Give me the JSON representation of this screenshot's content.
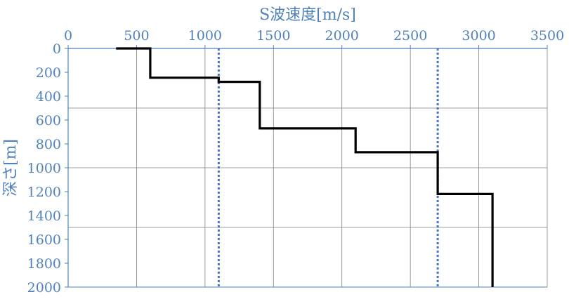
{
  "chart_data": {
    "type": "line",
    "title": "",
    "xlabel": "S波速度[m/s]",
    "ylabel": "深さ[m]",
    "xlim": [
      0,
      3500
    ],
    "ylim": [
      0,
      2000
    ],
    "y_inverted": true,
    "x_axis_position": "top",
    "x_ticks": [
      0,
      500,
      1000,
      1500,
      2000,
      2500,
      3000,
      3500
    ],
    "y_ticks": [
      0,
      200,
      400,
      600,
      800,
      1000,
      1200,
      1400,
      1600,
      1800,
      2000
    ],
    "grid": {
      "vertical_at": [
        500,
        1000,
        1500,
        2000,
        2500,
        3000,
        3500
      ],
      "horizontal_at": [
        500,
        1000,
        1500
      ],
      "color": "#7f7f7f"
    },
    "series": [
      {
        "style": "solid-step",
        "color": "#000000",
        "points": [
          {
            "x": 350,
            "y": 0
          },
          {
            "x": 600,
            "y": 0
          },
          {
            "x": 600,
            "y": 245
          },
          {
            "x": 1100,
            "y": 245
          },
          {
            "x": 1100,
            "y": 280
          },
          {
            "x": 1400,
            "y": 280
          },
          {
            "x": 1400,
            "y": 670
          },
          {
            "x": 2100,
            "y": 670
          },
          {
            "x": 2100,
            "y": 870
          },
          {
            "x": 2700,
            "y": 870
          },
          {
            "x": 2700,
            "y": 1220
          },
          {
            "x": 3100,
            "y": 1220
          },
          {
            "x": 3100,
            "y": 2000
          }
        ]
      }
    ],
    "reference_lines": [
      {
        "x": 1100,
        "style": "dotted",
        "color": "#4472c4"
      },
      {
        "x": 2700,
        "style": "dotted",
        "color": "#4472c4"
      }
    ],
    "colors": {
      "axis": "#4f81bd",
      "label": "#4f81bd",
      "grid": "#7f7f7f",
      "series": "#000000",
      "reference": "#4472c4"
    }
  }
}
